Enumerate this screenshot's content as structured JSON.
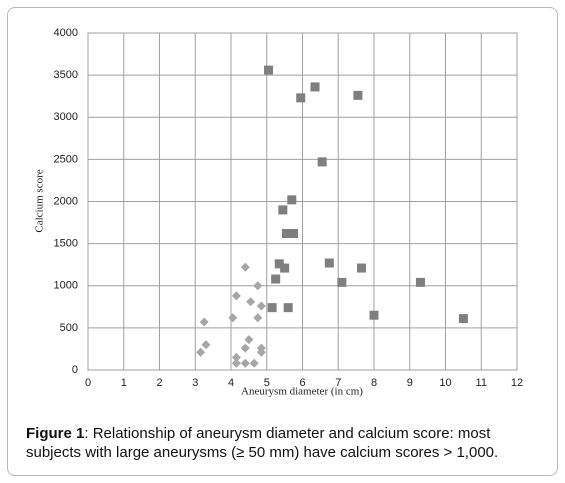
{
  "chart_data": {
    "type": "scatter",
    "x_label": "Aneurysm diameter (in cm)",
    "y_label": "Calcium score",
    "xlim": [
      0,
      12
    ],
    "xticks": [
      0,
      1,
      2,
      3,
      4,
      5,
      6,
      7,
      8,
      9,
      10,
      11,
      12
    ],
    "ylim": [
      0,
      4000
    ],
    "yticks": [
      0,
      500,
      1000,
      1500,
      2000,
      2500,
      3000,
      3500,
      4000
    ],
    "grid": true,
    "series": [
      {
        "color": "#a6a6a6",
        "marker": "diamond",
        "x": [
          4.4,
          4.75,
          4.15,
          4.55,
          4.85,
          4.05,
          4.75,
          3.25,
          4.5,
          3.3,
          4.4,
          4.85,
          4.85,
          3.15,
          4.15,
          4.15,
          4.4,
          4.65
        ],
        "y": [
          1220,
          1000,
          880,
          810,
          760,
          620,
          620,
          570,
          360,
          300,
          260,
          260,
          210,
          210,
          150,
          80,
          80,
          80
        ]
      },
      {
        "color": "#7f7f7f",
        "marker": "square",
        "x": [
          5.05,
          6.35,
          5.95,
          7.55,
          6.55,
          5.7,
          5.45,
          5.55,
          5.75,
          5.35,
          5.5,
          6.75,
          7.65,
          5.25,
          7.1,
          9.3,
          5.15,
          5.6,
          8,
          10.5
        ],
        "y": [
          3560,
          3360,
          3230,
          3260,
          2470,
          2020,
          1900,
          1620,
          1620,
          1260,
          1210,
          1270,
          1210,
          1080,
          1040,
          1040,
          740,
          740,
          650,
          610
        ]
      }
    ]
  },
  "caption": {
    "label": "Figure 1",
    "text": ": Relationship of aneurysm diameter and calcium score: most subjects with large aneurysms (≥ 50 mm) have calcium scores > 1,000."
  }
}
